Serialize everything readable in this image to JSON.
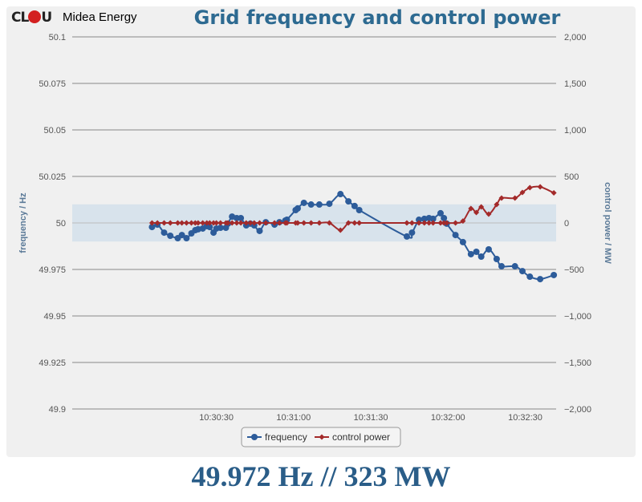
{
  "logo": {
    "mark": "CLOU",
    "name": "Midea Energy"
  },
  "readout": "49.972 Hz // 323 MW",
  "colors": {
    "frequency": "#2d5c9a",
    "power": "#a32a2a",
    "band": "#d8e3ec",
    "title": "#2d6a91"
  },
  "chart_data": {
    "type": "line",
    "title": "Grid frequency and control power",
    "x_unit": "seconds after 10:30:00",
    "xlim": [
      -26,
      162
    ],
    "x_ticks": [
      {
        "v": 30,
        "label": "10:30:30"
      },
      {
        "v": 60,
        "label": "10:31:00"
      },
      {
        "v": 90,
        "label": "10:31:30"
      },
      {
        "v": 120,
        "label": "10:32:00"
      },
      {
        "v": 150,
        "label": "10:32:30"
      }
    ],
    "y_left": {
      "label": "frequency / Hz",
      "lim": [
        49.9,
        50.1
      ],
      "ticks": [
        "49.9",
        "49.925",
        "49.95",
        "49.975",
        "50",
        "50.025",
        "50.05",
        "50.075",
        "50.1"
      ]
    },
    "y_right": {
      "label": "control power / MW",
      "lim": [
        -2000,
        2000
      ],
      "ticks": [
        "−2,000",
        "−1,500",
        "−1,000",
        "−500",
        "0",
        "500",
        "1,000",
        "1,500",
        "2,000"
      ]
    },
    "band": [
      49.99,
      50.01
    ],
    "legend": {
      "position": "bottom",
      "items": [
        "frequency",
        "control power"
      ]
    },
    "series": [
      {
        "name": "frequency",
        "axis": "left",
        "points": [
          [
            5,
            49.9978
          ],
          [
            7.1,
            49.9991
          ],
          [
            9.7,
            49.9948
          ],
          [
            12.1,
            49.9931
          ],
          [
            15,
            49.9918
          ],
          [
            16.6,
            49.9935
          ],
          [
            18.4,
            49.9918
          ],
          [
            20.3,
            49.9944
          ],
          [
            21.8,
            49.9961
          ],
          [
            22.9,
            49.9966
          ],
          [
            24.7,
            49.997
          ],
          [
            26.3,
            49.9983
          ],
          [
            27.4,
            49.9978
          ],
          [
            28.9,
            49.9948
          ],
          [
            30,
            49.997
          ],
          [
            31.6,
            49.9974
          ],
          [
            33.7,
            49.9974
          ],
          [
            34.5,
            49.9996
          ],
          [
            36.1,
            50.0034
          ],
          [
            37.9,
            50.0026
          ],
          [
            39.5,
            50.0026
          ],
          [
            41.6,
            49.9987
          ],
          [
            43.2,
            49.9996
          ],
          [
            44.7,
            49.9987
          ],
          [
            46.8,
            49.9957
          ],
          [
            49.2,
            50.0004
          ],
          [
            52.6,
            49.9991
          ],
          [
            54.5,
            50.0004
          ],
          [
            56.8,
            50.0013
          ],
          [
            57.4,
            50.0017
          ],
          [
            60.8,
            50.0069
          ],
          [
            61.6,
            50.0078
          ],
          [
            64,
            50.0108
          ],
          [
            66.8,
            50.0099
          ],
          [
            70,
            50.0099
          ],
          [
            73.9,
            50.0103
          ],
          [
            78.2,
            50.0155
          ],
          [
            81.3,
            50.0116
          ],
          [
            83.7,
            50.0091
          ],
          [
            85.5,
            50.0069
          ],
          [
            104,
            49.9927
          ],
          [
            106,
            49.9948
          ],
          [
            108.7,
            50.0017
          ],
          [
            110.8,
            50.0022
          ],
          [
            112.6,
            50.0026
          ],
          [
            114.2,
            50.0022
          ],
          [
            117.1,
            50.0052
          ],
          [
            118.4,
            50.0026
          ],
          [
            119.5,
            49.9996
          ],
          [
            122.9,
            49.9935
          ],
          [
            125.8,
            49.9897
          ],
          [
            128.9,
            49.9832
          ],
          [
            131,
            49.9845
          ],
          [
            132.9,
            49.9819
          ],
          [
            135.8,
            49.9858
          ],
          [
            138.9,
            49.9806
          ],
          [
            140.8,
            49.9767
          ],
          [
            146,
            49.9767
          ],
          [
            148.9,
            49.9741
          ],
          [
            151.8,
            49.9711
          ],
          [
            155.8,
            49.9698
          ],
          [
            161.1,
            49.972
          ]
        ]
      },
      {
        "name": "control power",
        "axis": "right",
        "points": [
          [
            5,
            0
          ],
          [
            7.1,
            0
          ],
          [
            9.7,
            0
          ],
          [
            12.1,
            0
          ],
          [
            15,
            0
          ],
          [
            16.6,
            0
          ],
          [
            18.4,
            0
          ],
          [
            20.3,
            0
          ],
          [
            21.8,
            0
          ],
          [
            22.9,
            0
          ],
          [
            24.7,
            0
          ],
          [
            26.3,
            0
          ],
          [
            27.4,
            0
          ],
          [
            28.9,
            0
          ],
          [
            30,
            0
          ],
          [
            31.6,
            0
          ],
          [
            33.7,
            0
          ],
          [
            34.5,
            0
          ],
          [
            36.1,
            0
          ],
          [
            37.9,
            0
          ],
          [
            39.5,
            0
          ],
          [
            41.6,
            0
          ],
          [
            43.2,
            0
          ],
          [
            44.7,
            0
          ],
          [
            46.8,
            0
          ],
          [
            49.2,
            0
          ],
          [
            52.6,
            0
          ],
          [
            54.5,
            0
          ],
          [
            56.8,
            0
          ],
          [
            57.4,
            0
          ],
          [
            60.8,
            0
          ],
          [
            61.6,
            0
          ],
          [
            64,
            0
          ],
          [
            66.8,
            0
          ],
          [
            70,
            0
          ],
          [
            73.9,
            0
          ],
          [
            78.2,
            -78
          ],
          [
            81.3,
            0
          ],
          [
            83.7,
            0
          ],
          [
            85.5,
            0
          ],
          [
            104,
            0
          ],
          [
            106,
            0
          ],
          [
            108.7,
            0
          ],
          [
            110.8,
            0
          ],
          [
            112.6,
            0
          ],
          [
            114.2,
            0
          ],
          [
            117.1,
            0
          ],
          [
            118.4,
            0
          ],
          [
            119.5,
            0
          ],
          [
            122.9,
            0
          ],
          [
            125.8,
            20
          ],
          [
            128.9,
            155
          ],
          [
            131,
            112
          ],
          [
            132.9,
            172
          ],
          [
            135.8,
            95
          ],
          [
            138.9,
            198
          ],
          [
            140.8,
            267
          ],
          [
            146,
            267
          ],
          [
            148.9,
            328
          ],
          [
            151.8,
            379
          ],
          [
            155.8,
            388
          ],
          [
            161.1,
            323
          ]
        ]
      }
    ]
  }
}
